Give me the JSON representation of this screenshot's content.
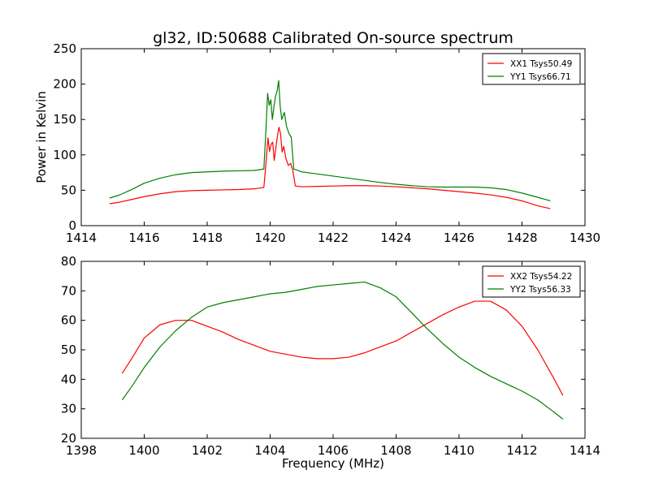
{
  "title": "gl32, ID:50688 Calibrated On-source spectrum",
  "chart_data": [
    {
      "type": "line",
      "ylabel": "Power in Kelvin",
      "xlabel": "",
      "xlim": [
        1414,
        1430
      ],
      "ylim": [
        0,
        250
      ],
      "xticks": [
        1414,
        1416,
        1418,
        1420,
        1422,
        1424,
        1426,
        1428,
        1430
      ],
      "yticks": [
        0,
        50,
        100,
        150,
        200,
        250
      ],
      "grid": false,
      "legend_position": "top-right",
      "series": [
        {
          "name": "XX1 Tsys50.49",
          "color": "#ff0000",
          "points": [
            [
              1414.9,
              31
            ],
            [
              1415.2,
              33
            ],
            [
              1415.6,
              37
            ],
            [
              1416.0,
              41
            ],
            [
              1416.5,
              45
            ],
            [
              1417.0,
              48
            ],
            [
              1417.5,
              49.5
            ],
            [
              1418.0,
              50
            ],
            [
              1418.5,
              50.5
            ],
            [
              1419.0,
              51
            ],
            [
              1419.5,
              52
            ],
            [
              1419.8,
              54
            ],
            [
              1419.88,
              95
            ],
            [
              1419.93,
              124
            ],
            [
              1419.98,
              105
            ],
            [
              1420.03,
              115
            ],
            [
              1420.08,
              118
            ],
            [
              1420.13,
              92
            ],
            [
              1420.18,
              110
            ],
            [
              1420.23,
              126
            ],
            [
              1420.28,
              139
            ],
            [
              1420.33,
              130
            ],
            [
              1420.38,
              104
            ],
            [
              1420.43,
              112
            ],
            [
              1420.5,
              95
            ],
            [
              1420.58,
              85
            ],
            [
              1420.65,
              88
            ],
            [
              1420.72,
              78
            ],
            [
              1420.8,
              56
            ],
            [
              1421.0,
              55
            ],
            [
              1421.5,
              55.5
            ],
            [
              1422.0,
              56
            ],
            [
              1422.5,
              56.5
            ],
            [
              1423.0,
              56.5
            ],
            [
              1423.5,
              56
            ],
            [
              1424.0,
              55
            ],
            [
              1424.5,
              53.5
            ],
            [
              1425.0,
              52
            ],
            [
              1425.5,
              50
            ],
            [
              1426.0,
              48
            ],
            [
              1426.5,
              46
            ],
            [
              1427.0,
              43.5
            ],
            [
              1427.5,
              40
            ],
            [
              1428.0,
              35
            ],
            [
              1428.5,
              28
            ],
            [
              1428.9,
              24
            ]
          ]
        },
        {
          "name": "YY1 Tsys66.71",
          "color": "#008000",
          "points": [
            [
              1414.9,
              39
            ],
            [
              1415.2,
              43
            ],
            [
              1415.6,
              51
            ],
            [
              1416.0,
              60
            ],
            [
              1416.5,
              67
            ],
            [
              1417.0,
              72
            ],
            [
              1417.5,
              75
            ],
            [
              1418.0,
              76
            ],
            [
              1418.5,
              77
            ],
            [
              1419.0,
              77.5
            ],
            [
              1419.5,
              78
            ],
            [
              1419.8,
              80
            ],
            [
              1419.86,
              130
            ],
            [
              1419.92,
              187
            ],
            [
              1419.97,
              170
            ],
            [
              1420.02,
              178
            ],
            [
              1420.07,
              150
            ],
            [
              1420.12,
              168
            ],
            [
              1420.17,
              183
            ],
            [
              1420.22,
              190
            ],
            [
              1420.27,
              205
            ],
            [
              1420.32,
              168
            ],
            [
              1420.37,
              150
            ],
            [
              1420.45,
              160
            ],
            [
              1420.52,
              140
            ],
            [
              1420.6,
              130
            ],
            [
              1420.67,
              125
            ],
            [
              1420.75,
              80
            ],
            [
              1421.0,
              76
            ],
            [
              1421.5,
              73
            ],
            [
              1422.0,
              70
            ],
            [
              1422.5,
              67
            ],
            [
              1423.0,
              64
            ],
            [
              1423.5,
              61
            ],
            [
              1424.0,
              58.5
            ],
            [
              1424.5,
              56.5
            ],
            [
              1425.0,
              55
            ],
            [
              1425.5,
              54.5
            ],
            [
              1426.0,
              54.5
            ],
            [
              1426.5,
              54.5
            ],
            [
              1427.0,
              53.5
            ],
            [
              1427.5,
              51
            ],
            [
              1428.0,
              46
            ],
            [
              1428.5,
              40
            ],
            [
              1428.9,
              35
            ]
          ]
        }
      ]
    },
    {
      "type": "line",
      "ylabel": "",
      "xlabel": "Frequency (MHz)",
      "xlim": [
        1398,
        1414
      ],
      "ylim": [
        20,
        80
      ],
      "xticks": [
        1398,
        1400,
        1402,
        1404,
        1406,
        1408,
        1410,
        1412,
        1414
      ],
      "yticks": [
        20,
        30,
        40,
        50,
        60,
        70,
        80
      ],
      "grid": false,
      "legend_position": "top-right",
      "series": [
        {
          "name": "XX2 Tsys54.22",
          "color": "#ff0000",
          "points": [
            [
              1399.3,
              42
            ],
            [
              1399.6,
              47
            ],
            [
              1400.0,
              54
            ],
            [
              1400.5,
              58.5
            ],
            [
              1401.0,
              60
            ],
            [
              1401.5,
              60
            ],
            [
              1402.0,
              58
            ],
            [
              1402.5,
              56
            ],
            [
              1403.0,
              53.5
            ],
            [
              1403.5,
              51.5
            ],
            [
              1404.0,
              49.5
            ],
            [
              1404.5,
              48.5
            ],
            [
              1405.0,
              47.5
            ],
            [
              1405.5,
              47
            ],
            [
              1406.0,
              47
            ],
            [
              1406.5,
              47.5
            ],
            [
              1407.0,
              49
            ],
            [
              1407.5,
              51
            ],
            [
              1408.0,
              53
            ],
            [
              1408.5,
              56
            ],
            [
              1409.0,
              59
            ],
            [
              1409.5,
              62
            ],
            [
              1410.0,
              64.5
            ],
            [
              1410.5,
              66.5
            ],
            [
              1411.0,
              66.5
            ],
            [
              1411.5,
              63.5
            ],
            [
              1412.0,
              58
            ],
            [
              1412.5,
              50
            ],
            [
              1413.0,
              40.5
            ],
            [
              1413.3,
              34.5
            ]
          ]
        },
        {
          "name": "YY2 Tsys56.33",
          "color": "#008000",
          "points": [
            [
              1399.3,
              33
            ],
            [
              1399.6,
              37.5
            ],
            [
              1400.0,
              44
            ],
            [
              1400.5,
              51
            ],
            [
              1401.0,
              56.5
            ],
            [
              1401.5,
              61
            ],
            [
              1402.0,
              64.5
            ],
            [
              1402.5,
              66
            ],
            [
              1403.0,
              67
            ],
            [
              1403.5,
              68
            ],
            [
              1404.0,
              69
            ],
            [
              1404.5,
              69.5
            ],
            [
              1405.0,
              70.5
            ],
            [
              1405.5,
              71.5
            ],
            [
              1406.0,
              72
            ],
            [
              1406.5,
              72.5
            ],
            [
              1407.0,
              73
            ],
            [
              1407.5,
              71
            ],
            [
              1408.0,
              68
            ],
            [
              1408.5,
              62.5
            ],
            [
              1409.0,
              57
            ],
            [
              1409.5,
              52
            ],
            [
              1410.0,
              47.5
            ],
            [
              1410.5,
              44
            ],
            [
              1411.0,
              41
            ],
            [
              1411.5,
              38.5
            ],
            [
              1412.0,
              36
            ],
            [
              1412.5,
              33
            ],
            [
              1413.0,
              29
            ],
            [
              1413.3,
              26.5
            ]
          ]
        }
      ]
    }
  ]
}
